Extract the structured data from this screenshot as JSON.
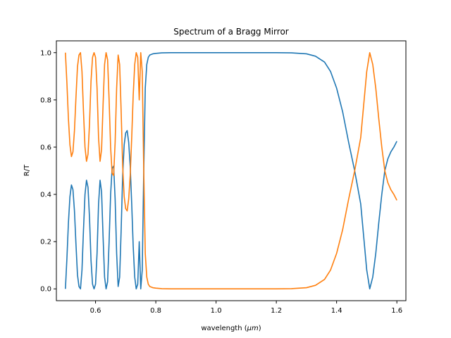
{
  "chart_data": {
    "type": "line",
    "title": "Spectrum of a Bragg Mirror",
    "xlabel_prefix": "wavelength (",
    "xlabel_symbol": "μm",
    "xlabel_suffix": ")",
    "ylabel": "R/T",
    "xlim": [
      0.47,
      1.63
    ],
    "ylim": [
      -0.05,
      1.05
    ],
    "x_ticks": [
      0.6,
      0.8,
      1.0,
      1.2,
      1.4,
      1.6
    ],
    "x_tick_labels": [
      "0.6",
      "0.8",
      "1.0",
      "1.2",
      "1.4",
      "1.6"
    ],
    "y_ticks": [
      0.0,
      0.2,
      0.4,
      0.6,
      0.8,
      1.0
    ],
    "y_tick_labels": [
      "0.0",
      "0.2",
      "0.4",
      "0.6",
      "0.8",
      "1.0"
    ],
    "grid": false,
    "legend": "none",
    "series": [
      {
        "color": "#1f77b4",
        "x": [
          0.5,
          0.505,
          0.51,
          0.515,
          0.52,
          0.525,
          0.53,
          0.535,
          0.54,
          0.545,
          0.55,
          0.555,
          0.56,
          0.565,
          0.57,
          0.575,
          0.58,
          0.585,
          0.59,
          0.595,
          0.6,
          0.605,
          0.61,
          0.615,
          0.62,
          0.625,
          0.63,
          0.635,
          0.64,
          0.645,
          0.65,
          0.655,
          0.66,
          0.665,
          0.67,
          0.675,
          0.68,
          0.685,
          0.69,
          0.695,
          0.7,
          0.705,
          0.71,
          0.715,
          0.72,
          0.725,
          0.73,
          0.735,
          0.74,
          0.745,
          0.75,
          0.755,
          0.76,
          0.765,
          0.77,
          0.775,
          0.78,
          0.79,
          0.8,
          0.82,
          0.85,
          0.9,
          1.0,
          1.1,
          1.2,
          1.25,
          1.3,
          1.33,
          1.36,
          1.38,
          1.4,
          1.42,
          1.44,
          1.46,
          1.48,
          1.49,
          1.5,
          1.51,
          1.52,
          1.53,
          1.54,
          1.55,
          1.56,
          1.57,
          1.58,
          1.59,
          1.6
        ],
        "y": [
          0.0,
          0.13,
          0.28,
          0.39,
          0.44,
          0.42,
          0.33,
          0.19,
          0.06,
          0.01,
          0.0,
          0.08,
          0.25,
          0.4,
          0.46,
          0.43,
          0.3,
          0.12,
          0.02,
          0.0,
          0.02,
          0.15,
          0.36,
          0.46,
          0.41,
          0.22,
          0.05,
          0.0,
          0.03,
          0.2,
          0.4,
          0.51,
          0.52,
          0.38,
          0.15,
          0.01,
          0.05,
          0.25,
          0.48,
          0.61,
          0.66,
          0.67,
          0.62,
          0.52,
          0.36,
          0.18,
          0.05,
          0.0,
          0.02,
          0.2,
          0.0,
          0.08,
          0.5,
          0.85,
          0.95,
          0.98,
          0.99,
          0.995,
          0.997,
          0.999,
          1.0,
          1.0,
          1.0,
          1.0,
          1.0,
          0.999,
          0.995,
          0.985,
          0.96,
          0.92,
          0.85,
          0.75,
          0.62,
          0.5,
          0.36,
          0.22,
          0.08,
          0.0,
          0.05,
          0.15,
          0.28,
          0.4,
          0.5,
          0.55,
          0.58,
          0.6,
          0.625
        ]
      },
      {
        "color": "#ff7f0e",
        "x": [
          0.5,
          0.505,
          0.51,
          0.515,
          0.52,
          0.525,
          0.53,
          0.535,
          0.54,
          0.545,
          0.55,
          0.555,
          0.56,
          0.565,
          0.57,
          0.575,
          0.58,
          0.585,
          0.59,
          0.595,
          0.6,
          0.605,
          0.61,
          0.615,
          0.62,
          0.625,
          0.63,
          0.635,
          0.64,
          0.645,
          0.65,
          0.655,
          0.66,
          0.665,
          0.67,
          0.675,
          0.68,
          0.685,
          0.69,
          0.695,
          0.7,
          0.705,
          0.71,
          0.715,
          0.72,
          0.725,
          0.73,
          0.735,
          0.74,
          0.745,
          0.75,
          0.755,
          0.76,
          0.765,
          0.77,
          0.775,
          0.78,
          0.79,
          0.8,
          0.82,
          0.85,
          0.9,
          1.0,
          1.1,
          1.2,
          1.25,
          1.3,
          1.33,
          1.36,
          1.38,
          1.4,
          1.42,
          1.44,
          1.46,
          1.48,
          1.49,
          1.5,
          1.51,
          1.52,
          1.53,
          1.54,
          1.55,
          1.56,
          1.57,
          1.58,
          1.59,
          1.6
        ],
        "y": [
          1.0,
          0.87,
          0.72,
          0.61,
          0.56,
          0.58,
          0.67,
          0.81,
          0.94,
          0.99,
          1.0,
          0.92,
          0.75,
          0.6,
          0.54,
          0.57,
          0.7,
          0.88,
          0.98,
          1.0,
          0.98,
          0.85,
          0.64,
          0.54,
          0.59,
          0.78,
          0.95,
          1.0,
          0.97,
          0.8,
          0.6,
          0.49,
          0.48,
          0.62,
          0.85,
          0.99,
          0.95,
          0.75,
          0.52,
          0.39,
          0.34,
          0.33,
          0.38,
          0.48,
          0.64,
          0.82,
          0.95,
          1.0,
          0.98,
          0.8,
          1.0,
          0.92,
          0.5,
          0.15,
          0.05,
          0.02,
          0.01,
          0.005,
          0.003,
          0.001,
          0.0,
          0.0,
          0.0,
          0.0,
          0.0,
          0.001,
          0.005,
          0.015,
          0.04,
          0.08,
          0.15,
          0.25,
          0.38,
          0.5,
          0.64,
          0.78,
          0.92,
          1.0,
          0.95,
          0.85,
          0.72,
          0.6,
          0.5,
          0.45,
          0.42,
          0.4,
          0.375
        ]
      }
    ]
  }
}
